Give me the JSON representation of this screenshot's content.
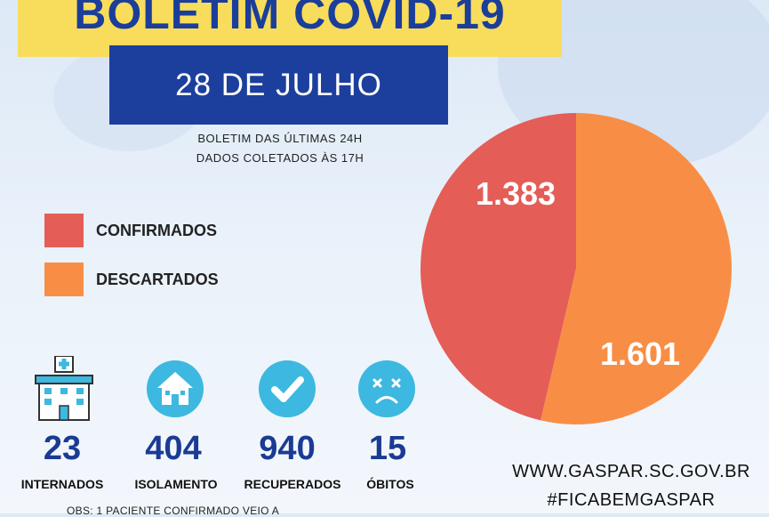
{
  "header": {
    "title": "BOLETIM COVID-19",
    "date": "28 DE JULHO",
    "subtitle_line1": "BOLETIM DAS ÚLTIMAS 24H",
    "subtitle_line2": "DADOS COLETADOS ÀS  17H"
  },
  "legend": {
    "confirmed_label": "CONFIRMADOS",
    "discarded_label": "DESCARTADOS"
  },
  "colors": {
    "confirmed": "#e45d57",
    "discarded": "#f88e45",
    "banner": "#f8dc5c",
    "date_box": "#1c3f9d",
    "stat_number": "#1b3b93",
    "icon_circle": "#3db8e0"
  },
  "chart_data": {
    "type": "pie",
    "title": "",
    "slices": [
      {
        "label": "CONFIRMADOS",
        "value": 1383,
        "display": "1.383"
      },
      {
        "label": "DESCARTADOS",
        "value": 1601,
        "display": "1.601"
      }
    ]
  },
  "stats": [
    {
      "icon": "hospital-icon",
      "number": "23",
      "label": "INTERNADOS"
    },
    {
      "icon": "house-icon",
      "number": "404",
      "label": "ISOLAMENTO"
    },
    {
      "icon": "checkmark-icon",
      "number": "940",
      "label": "RECUPERADOS"
    },
    {
      "icon": "sad-face-icon",
      "number": "15",
      "label": "ÓBITOS"
    }
  ],
  "footer": {
    "website": "WWW.GASPAR.SC.GOV.BR",
    "hashtag": "#FICABEMGASPAR",
    "obs": "OBS: 1 PACIENTE CONFIRMADO VEIO A"
  }
}
